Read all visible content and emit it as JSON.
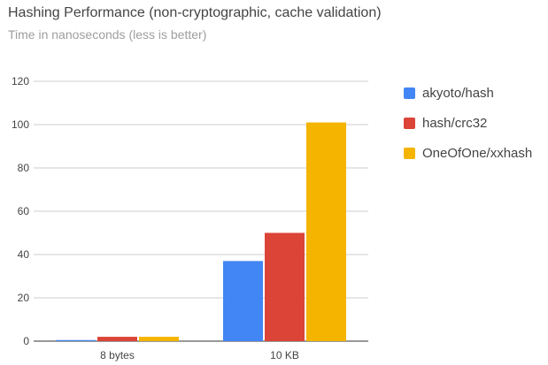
{
  "chart_data": {
    "type": "bar",
    "title": "Hashing Performance (non-cryptographic, cache validation)",
    "subtitle": "Time in nanoseconds (less is better)",
    "xlabel": "",
    "ylabel": "",
    "ylim": [
      0,
      120
    ],
    "yticks": [
      0,
      20,
      40,
      60,
      80,
      100,
      120
    ],
    "grid": true,
    "legend_position": "right",
    "categories": [
      "8 bytes",
      "10 KB"
    ],
    "series": [
      {
        "name": "akyoto/hash",
        "color": "#4285f4",
        "values": [
          0.5,
          37
        ]
      },
      {
        "name": "hash/crc32",
        "color": "#db4437",
        "values": [
          2,
          50
        ]
      },
      {
        "name": "OneOfOne/xxhash",
        "color": "#f4b400",
        "values": [
          2,
          101
        ]
      }
    ]
  }
}
